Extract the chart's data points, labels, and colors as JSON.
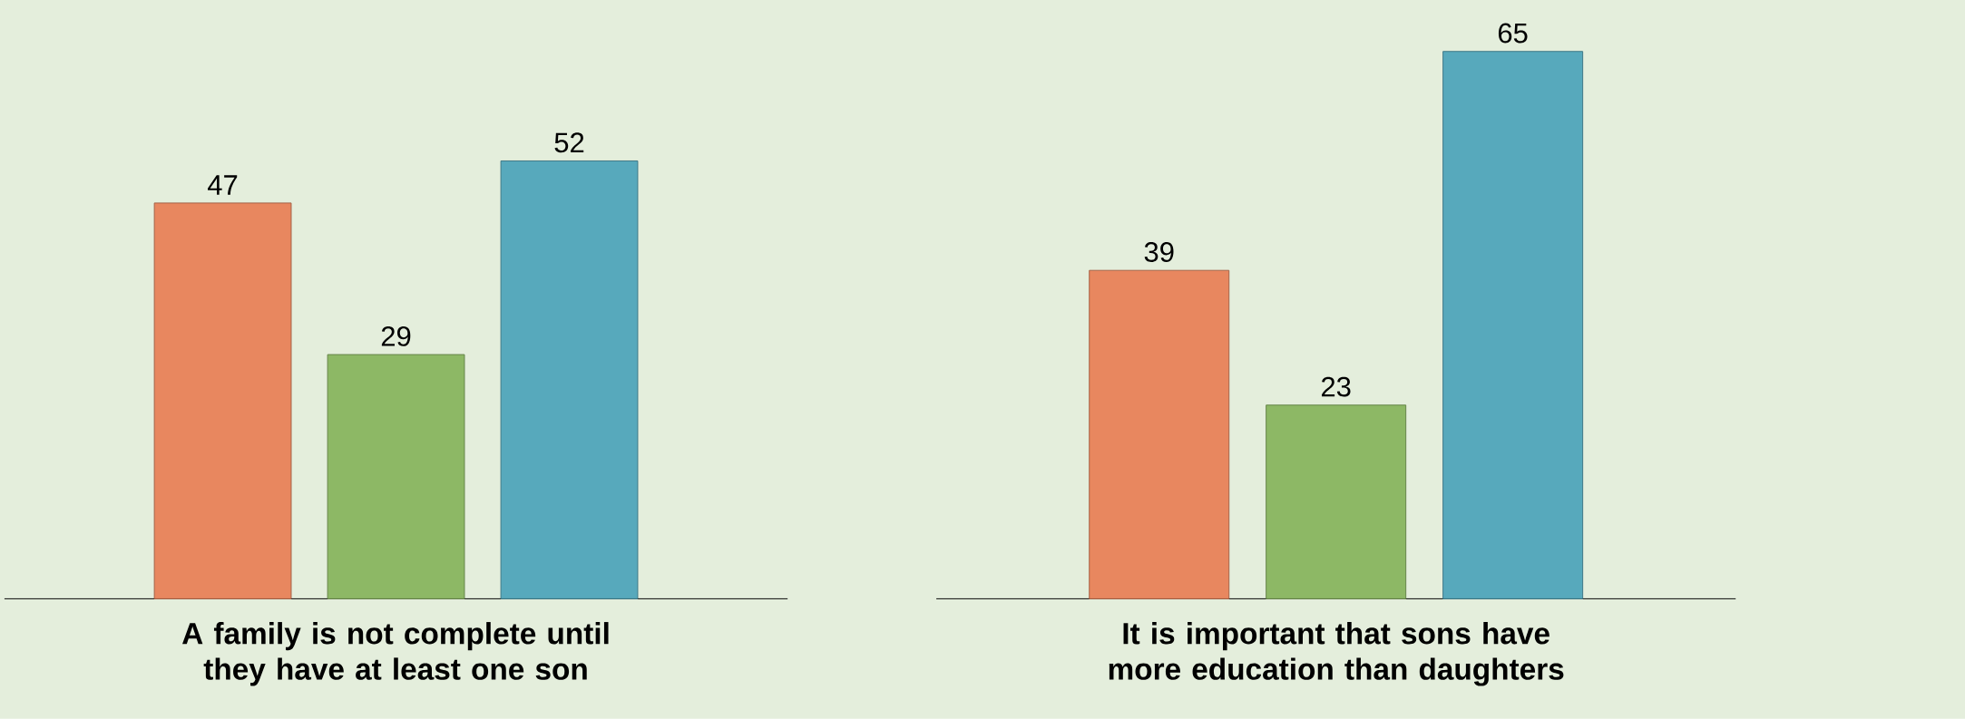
{
  "chart_data": [
    {
      "type": "bar",
      "categories": [
        null,
        null,
        null
      ],
      "values": [
        47,
        29,
        52
      ],
      "colors": [
        "#e8875f",
        "#8db865",
        "#57a9bc"
      ],
      "data_labels": true,
      "xlabel": "A family is not complete until they have at least one son"
    },
    {
      "type": "bar",
      "categories": [
        null,
        null,
        null
      ],
      "values": [
        39,
        23,
        65
      ],
      "colors": [
        "#e8875f",
        "#8db865",
        "#57a9bc"
      ],
      "data_labels": true,
      "xlabel": "It is important that sons have more education than daughters"
    }
  ]
}
